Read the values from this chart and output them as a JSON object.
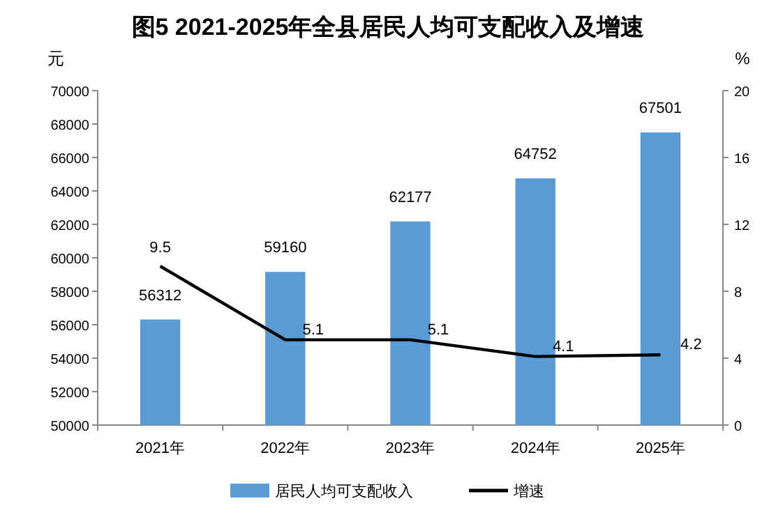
{
  "chart_data": {
    "type": "bar",
    "title": "图5  2021-2025年全县居民人均可支配收入及增速",
    "ylabel": "元",
    "y2label": "%",
    "categories": [
      "2021年",
      "2022年",
      "2023年",
      "2024年",
      "2025年"
    ],
    "series": [
      {
        "name": "居民人均可支配收入",
        "color": "#5b9bd5",
        "values": [
          56312,
          59160,
          62177,
          64752,
          67501
        ]
      },
      {
        "name": "增速",
        "type": "line",
        "axis": "y2",
        "color": "#000000",
        "values": [
          9.5,
          5.1,
          5.1,
          4.1,
          4.2
        ]
      }
    ],
    "ylim": [
      50000,
      70000
    ],
    "yticks": [
      50000,
      52000,
      54000,
      56000,
      58000,
      60000,
      62000,
      64000,
      66000,
      68000,
      70000
    ],
    "y2lim": [
      0,
      20
    ],
    "y2ticks": [
      0,
      4,
      8,
      12,
      16,
      20
    ],
    "data_labels": true,
    "legend": "bottom",
    "grid": false,
    "marker": "none"
  }
}
